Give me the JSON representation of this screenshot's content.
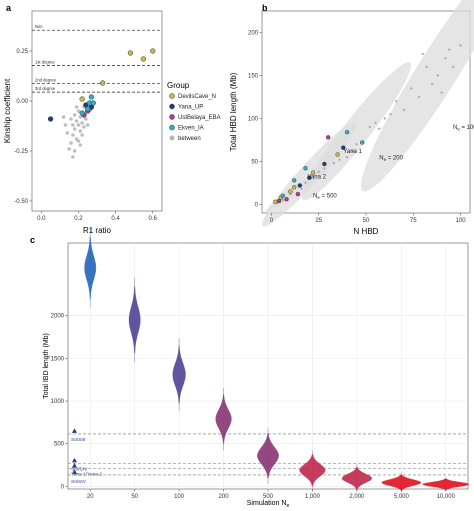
{
  "colors": {
    "devils_cave": "#c5b94a",
    "yana_up": "#1f3f7a",
    "ust_belaya": "#b03aa0",
    "ekven": "#2bb0c8",
    "between": "#b4b4b4",
    "violin_gradient": [
      "#2f6cb8",
      "#5a4c9a",
      "#8e3f7c",
      "#c23255",
      "#e11d2a"
    ],
    "dashed_line": "#777777",
    "grid": "#e9e9e9",
    "ellipse": "#dcdcdc"
  },
  "chart_data": [
    {
      "id": "a",
      "panel_label": "a",
      "type": "scatter",
      "xlabel": "R1 ratio",
      "ylabel": "Kinship coefficient",
      "xticks": [
        "0.0",
        "0.2",
        "0.4",
        "0.6"
      ],
      "yticks": [
        "0.25",
        "0.00",
        "-0.25",
        "-0.50"
      ],
      "xlim": [
        -0.05,
        0.65
      ],
      "ylim": [
        -0.55,
        0.45
      ],
      "thresholds": [
        {
          "label": "twin",
          "y": 0.354
        },
        {
          "label": "1st degree",
          "y": 0.177
        },
        {
          "label": "2nd degree",
          "y": 0.0884
        },
        {
          "label": "3rd degree",
          "y": 0.0442
        }
      ],
      "legend_title": "Group",
      "legend": [
        {
          "name": "DevilsCave_N",
          "color_key": "devils_cave"
        },
        {
          "name": "Yana_UP",
          "color_key": "yana_up"
        },
        {
          "name": "UstBelaya_EBA",
          "color_key": "ust_belaya"
        },
        {
          "name": "Ekven_IA",
          "color_key": "ekven"
        },
        {
          "name": "between",
          "color_key": "between"
        }
      ],
      "points": [
        {
          "x": 0.55,
          "y": 0.21,
          "g": "devils_cave"
        },
        {
          "x": 0.6,
          "y": 0.25,
          "g": "devils_cave"
        },
        {
          "x": 0.48,
          "y": 0.24,
          "g": "devils_cave"
        },
        {
          "x": 0.33,
          "y": 0.09,
          "g": "devils_cave"
        },
        {
          "x": 0.22,
          "y": 0.01,
          "g": "devils_cave"
        },
        {
          "x": 0.26,
          "y": -0.04,
          "g": "devils_cave"
        },
        {
          "x": 0.05,
          "y": -0.09,
          "g": "yana_up"
        },
        {
          "x": 0.27,
          "y": -0.03,
          "g": "yana_up"
        },
        {
          "x": 0.24,
          "y": -0.02,
          "g": "yana_up"
        },
        {
          "x": 0.25,
          "y": -0.05,
          "g": "ust_belaya"
        },
        {
          "x": 0.23,
          "y": -0.07,
          "g": "ust_belaya"
        },
        {
          "x": 0.26,
          "y": -0.01,
          "g": "ekven"
        },
        {
          "x": 0.27,
          "y": 0.02,
          "g": "ekven"
        },
        {
          "x": 0.25,
          "y": -0.04,
          "g": "ekven"
        },
        {
          "x": 0.28,
          "y": -0.01,
          "g": "ekven"
        },
        {
          "x": 0.22,
          "y": -0.06,
          "g": "ekven"
        },
        {
          "x": 0.21,
          "y": -0.08,
          "g": "between"
        },
        {
          "x": 0.19,
          "y": -0.1,
          "g": "between"
        },
        {
          "x": 0.2,
          "y": -0.12,
          "g": "between"
        },
        {
          "x": 0.18,
          "y": -0.14,
          "g": "between"
        },
        {
          "x": 0.22,
          "y": -0.11,
          "g": "between"
        },
        {
          "x": 0.17,
          "y": -0.17,
          "g": "between"
        },
        {
          "x": 0.21,
          "y": -0.15,
          "g": "between"
        },
        {
          "x": 0.19,
          "y": -0.19,
          "g": "between"
        },
        {
          "x": 0.23,
          "y": -0.13,
          "g": "between"
        },
        {
          "x": 0.16,
          "y": -0.21,
          "g": "between"
        },
        {
          "x": 0.2,
          "y": -0.05,
          "g": "between"
        },
        {
          "x": 0.18,
          "y": -0.07,
          "g": "between"
        },
        {
          "x": 0.24,
          "y": -0.09,
          "g": "between"
        },
        {
          "x": 0.15,
          "y": -0.24,
          "g": "between"
        },
        {
          "x": 0.22,
          "y": -0.17,
          "g": "between"
        },
        {
          "x": 0.17,
          "y": -0.12,
          "g": "between"
        },
        {
          "x": 0.2,
          "y": -0.2,
          "g": "between"
        },
        {
          "x": 0.18,
          "y": -0.25,
          "g": "between"
        },
        {
          "x": 0.14,
          "y": -0.16,
          "g": "between"
        },
        {
          "x": 0.23,
          "y": -0.03,
          "g": "between"
        },
        {
          "x": 0.16,
          "y": -0.09,
          "g": "between"
        },
        {
          "x": 0.21,
          "y": -0.22,
          "g": "between"
        },
        {
          "x": 0.13,
          "y": -0.12,
          "g": "between"
        },
        {
          "x": 0.25,
          "y": -0.12,
          "g": "between"
        },
        {
          "x": 0.19,
          "y": -0.03,
          "g": "between"
        },
        {
          "x": 0.17,
          "y": -0.28,
          "g": "between"
        },
        {
          "x": 0.12,
          "y": -0.08,
          "g": "between"
        }
      ]
    },
    {
      "id": "b",
      "panel_label": "b",
      "type": "scatter",
      "xlabel": "N HBD",
      "ylabel": "Total HBD length (Mb)",
      "xticks": [
        "0",
        "25",
        "50",
        "75",
        "100"
      ],
      "yticks": [
        "0",
        "50",
        "100",
        "150",
        "200"
      ],
      "xlim": [
        -5,
        105
      ],
      "ylim": [
        -10,
        225
      ],
      "ellipses": [
        {
          "cx": 8,
          "cy": 10,
          "rx": 12,
          "ry": 5,
          "angle": 38
        },
        {
          "cx": 20,
          "cy": 35,
          "rx": 32,
          "ry": 13,
          "angle": 48
        },
        {
          "cx": 45,
          "cy": 85,
          "rx": 40,
          "ry": 17,
          "angle": 52
        },
        {
          "cx": 88,
          "cy": 155,
          "rx": 65,
          "ry": 26,
          "angle": 58
        }
      ],
      "annotations": [
        {
          "label": "Yana 1",
          "x": 38,
          "y": 60
        },
        {
          "label": "Yana 2",
          "x": 19,
          "y": 30
        },
        {
          "label": "N",
          "sub": "e",
          "tail": " = 500",
          "x": 22,
          "y": 8
        },
        {
          "label": "N",
          "sub": "e",
          "tail": " = 200",
          "x": 57,
          "y": 52
        },
        {
          "label": "N",
          "sub": "e",
          "tail": " = 1000",
          "x": 96,
          "y": 88
        }
      ],
      "points": [
        {
          "x": 2,
          "y": 3,
          "g": "devils_cave"
        },
        {
          "x": 5,
          "y": 8,
          "g": "devils_cave"
        },
        {
          "x": 12,
          "y": 20,
          "g": "devils_cave"
        },
        {
          "x": 22,
          "y": 37,
          "g": "devils_cave"
        },
        {
          "x": 35,
          "y": 58,
          "g": "devils_cave"
        },
        {
          "x": 10,
          "y": 15,
          "g": "devils_cave"
        },
        {
          "x": 38,
          "y": 66,
          "g": "yana_up"
        },
        {
          "x": 20,
          "y": 31,
          "g": "yana_up"
        },
        {
          "x": 28,
          "y": 47,
          "g": "yana_up"
        },
        {
          "x": 15,
          "y": 22,
          "g": "yana_up"
        },
        {
          "x": 8,
          "y": 6,
          "g": "ust_belaya"
        },
        {
          "x": 14,
          "y": 12,
          "g": "ust_belaya"
        },
        {
          "x": 4,
          "y": 4,
          "g": "ust_belaya"
        },
        {
          "x": 30,
          "y": 78,
          "g": "ust_belaya"
        },
        {
          "x": 6,
          "y": 10,
          "g": "ekven"
        },
        {
          "x": 12,
          "y": 28,
          "g": "ekven"
        },
        {
          "x": 18,
          "y": 42,
          "g": "ekven"
        },
        {
          "x": 48,
          "y": 72,
          "g": "ekven"
        },
        {
          "x": 40,
          "y": 84,
          "g": "ekven"
        },
        {
          "x": 70,
          "y": 110,
          "g": "between"
        },
        {
          "x": 85,
          "y": 140,
          "g": "between"
        },
        {
          "x": 92,
          "y": 170,
          "g": "between"
        },
        {
          "x": 78,
          "y": 125,
          "g": "between"
        },
        {
          "x": 88,
          "y": 150,
          "g": "between"
        },
        {
          "x": 96,
          "y": 160,
          "g": "between"
        },
        {
          "x": 80,
          "y": 175,
          "g": "between"
        },
        {
          "x": 74,
          "y": 135,
          "g": "between"
        },
        {
          "x": 90,
          "y": 130,
          "g": "between"
        },
        {
          "x": 100,
          "y": 185,
          "g": "between"
        },
        {
          "x": 66,
          "y": 120,
          "g": "between"
        },
        {
          "x": 55,
          "y": 95,
          "g": "between"
        },
        {
          "x": 60,
          "y": 100,
          "g": "between"
        },
        {
          "x": 45,
          "y": 70,
          "g": "between"
        },
        {
          "x": 52,
          "y": 90,
          "g": "between"
        },
        {
          "x": 40,
          "y": 55,
          "g": "between"
        },
        {
          "x": 33,
          "y": 48,
          "g": "between"
        },
        {
          "x": 25,
          "y": 38,
          "g": "between"
        },
        {
          "x": 18,
          "y": 25,
          "g": "between"
        },
        {
          "x": 10,
          "y": 12,
          "g": "between"
        },
        {
          "x": 6,
          "y": 5,
          "g": "between"
        },
        {
          "x": 3,
          "y": 2,
          "g": "between"
        },
        {
          "x": 28,
          "y": 42,
          "g": "between"
        },
        {
          "x": 43,
          "y": 62,
          "g": "between"
        },
        {
          "x": 57,
          "y": 88,
          "g": "between"
        },
        {
          "x": 63,
          "y": 105,
          "g": "between"
        },
        {
          "x": 36,
          "y": 52,
          "g": "between"
        },
        {
          "x": 16,
          "y": 18,
          "g": "between"
        },
        {
          "x": 94,
          "y": 180,
          "g": "between"
        },
        {
          "x": 82,
          "y": 160,
          "g": "between"
        }
      ]
    },
    {
      "id": "c",
      "panel_label": "c",
      "type": "violin",
      "xlabel_main": "Simulation N",
      "xlabel_sub": "e",
      "ylabel": "Total IBD length (Mb)",
      "yticks": [
        "0",
        "500",
        "1000",
        "1500",
        "2000"
      ],
      "ytick_values": [
        0,
        500,
        1000,
        1500,
        2000
      ],
      "ylim": [
        -30,
        2850
      ],
      "categories": [
        "20",
        "50",
        "100",
        "200",
        "500",
        "1,000",
        "2,000",
        "5,000",
        "10,000"
      ],
      "medians": [
        2560,
        1950,
        1310,
        790,
        360,
        190,
        95,
        45,
        25
      ],
      "spreads": [
        140,
        150,
        130,
        110,
        100,
        70,
        50,
        35,
        25
      ],
      "widths": [
        0.16,
        0.16,
        0.18,
        0.22,
        0.3,
        0.36,
        0.42,
        0.55,
        0.65
      ],
      "reference_lines": [
        {
          "label": "SII/SIII",
          "y": 615
        },
        {
          "label": "SIII/SIV",
          "y": 270
        },
        {
          "label": "Yana 1/Yana 2",
          "y": 210
        },
        {
          "label": "SII/SIV",
          "y": 135
        }
      ]
    }
  ]
}
